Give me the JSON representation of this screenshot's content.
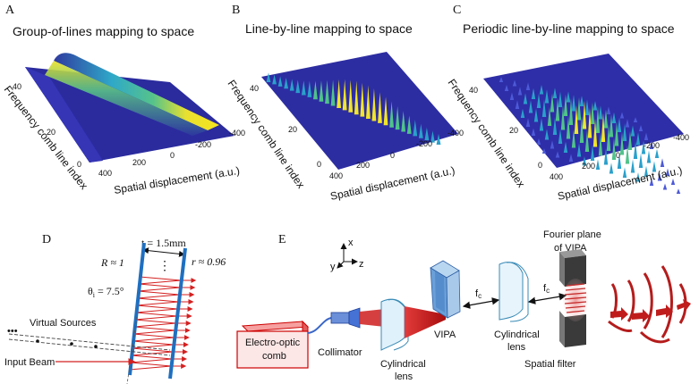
{
  "panels": {
    "A": {
      "letter": "A",
      "title": "Group-of-lines mapping to space",
      "ylabel": "Frequency comb line index",
      "xlabel": "Spatial displacement (a.u.)",
      "yticks": [
        "40",
        "20",
        "0"
      ],
      "xticks": [
        "400",
        "200",
        "0",
        "-200",
        "-400"
      ]
    },
    "B": {
      "letter": "B",
      "title": "Line-by-line mapping to space",
      "ylabel": "Frequency comb line index",
      "xlabel": "Spatial displacement (a.u.)",
      "yticks": [
        "40",
        "20",
        "0"
      ],
      "xticks": [
        "400",
        "200",
        "0",
        "-200",
        "-400"
      ]
    },
    "C": {
      "letter": "C",
      "title": "Periodic line-by-line mapping to space",
      "ylabel": "Frequency comb line index",
      "xlabel": "Spatial displacement (a.u.)",
      "yticks": [
        "40",
        "20",
        "0"
      ],
      "xticks": [
        "400",
        "200",
        "0",
        "-200",
        "-400"
      ]
    },
    "D": {
      "letter": "D",
      "thickness": "t = 1.5mm",
      "R": "R ≈ 1",
      "r": "r ≈ 0.96",
      "angle": "θ",
      "angle_sub": "i",
      "angle_val": " = 7.5°",
      "virtual_sources": "Virtual Sources",
      "input_beam": "Input Beam",
      "dots_top": "⋮",
      "dots_left": "•••"
    },
    "E": {
      "letter": "E",
      "axis_x": "x",
      "axis_y": "y",
      "axis_z": "z",
      "comb_line1": "Electro-optic",
      "comb_line2": "comb",
      "collimator": "Collimator",
      "cyl_lens1_line1": "Cylindrical",
      "cyl_lens1_line2": "lens",
      "vipa": "VIPA",
      "fc_base": "f",
      "fc_sub": "c",
      "cyl_lens2_line1": "Cylindrical",
      "cyl_lens2_line2": "lens",
      "fourier_line1": "Fourier plane",
      "fourier_line2": "of VIPA",
      "spatial_filter": "Spatial filter"
    }
  },
  "colors": {
    "surface_dark": "#2a2a9c",
    "surface_light": "#4b4bd0",
    "peak_yellow": "#f5e625",
    "peak_green": "#3fbf7f",
    "peak_cyan": "#2aa5c9",
    "beam_red": "#c81e1e",
    "plate_blue": "#1f6fc0",
    "vipa_blue": "#6aa6dc"
  }
}
